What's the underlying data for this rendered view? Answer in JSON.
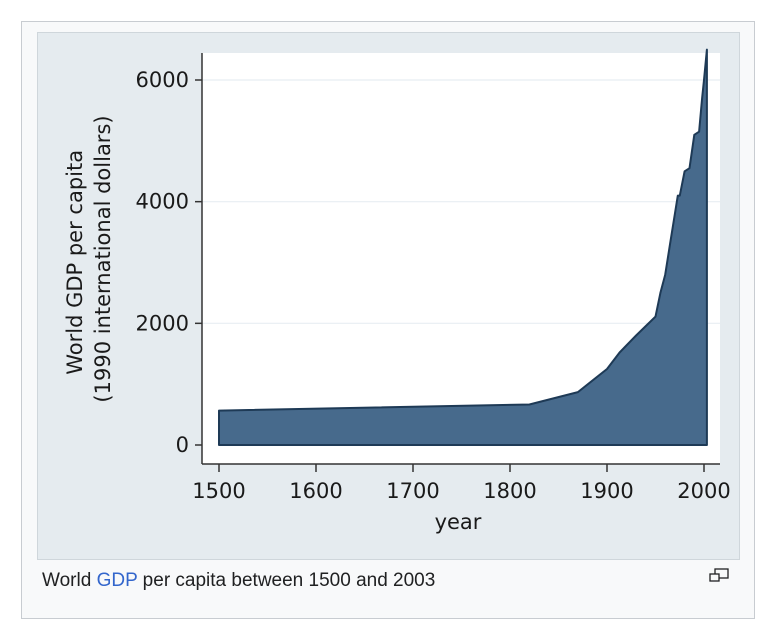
{
  "caption": {
    "prefix": "World ",
    "link_text": "GDP",
    "suffix": " per capita between 1500 and 2003"
  },
  "enlarge_icon": "enlarge-icon",
  "chart_data": {
    "type": "area",
    "title": "",
    "xlabel": "year",
    "ylabel_lines": [
      "World GDP per capita",
      "(1990 international dollars)"
    ],
    "xlim": [
      1500,
      2003
    ],
    "ylim": [
      0,
      6500
    ],
    "xticks": [
      1500,
      1600,
      1700,
      1800,
      1900,
      2000
    ],
    "yticks": [
      0,
      2000,
      4000,
      6000
    ],
    "grid": "horizontal",
    "colors": {
      "fill": "#476a8c",
      "stroke": "#1e3a56",
      "plot_bg": "#ffffff",
      "grid": "#e8eef2"
    },
    "series": [
      {
        "x": [
          1500,
          1820,
          1870,
          1900,
          1913,
          1930,
          1950,
          1955,
          1960,
          1965,
          1970,
          1973,
          1975,
          1980,
          1985,
          1990,
          1995,
          1998,
          2000,
          2003
        ],
        "y": [
          565,
          666,
          870,
          1250,
          1520,
          1800,
          2110,
          2500,
          2800,
          3300,
          3800,
          4100,
          4100,
          4500,
          4550,
          5100,
          5150,
          5700,
          6000,
          6500
        ]
      }
    ]
  }
}
